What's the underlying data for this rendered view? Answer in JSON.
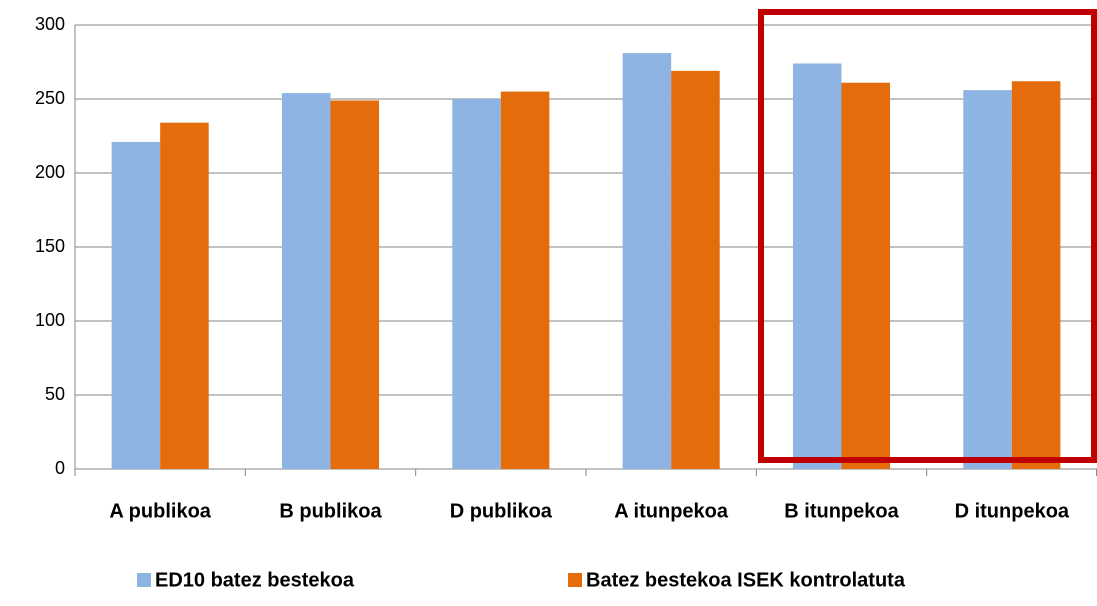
{
  "chart_data": {
    "type": "bar",
    "categories": [
      "A publikoa",
      "B publikoa",
      "D publikoa",
      "A itunpekoa",
      "B itunpekoa",
      "D itunpekoa"
    ],
    "series": [
      {
        "name": "ED10 batez bestekoa",
        "color": "#8eb4e3",
        "values": [
          221,
          254,
          250,
          281,
          274,
          256
        ]
      },
      {
        "name": "Batez bestekoa ISEK kontrolatuta",
        "color": "#e46c0a",
        "values": [
          234,
          249,
          255,
          269,
          261,
          262
        ]
      }
    ],
    "ylim": [
      0,
      300
    ],
    "yticks": [
      0,
      50,
      100,
      150,
      200,
      250,
      300
    ],
    "grid": true,
    "legend": "bottom"
  }
}
